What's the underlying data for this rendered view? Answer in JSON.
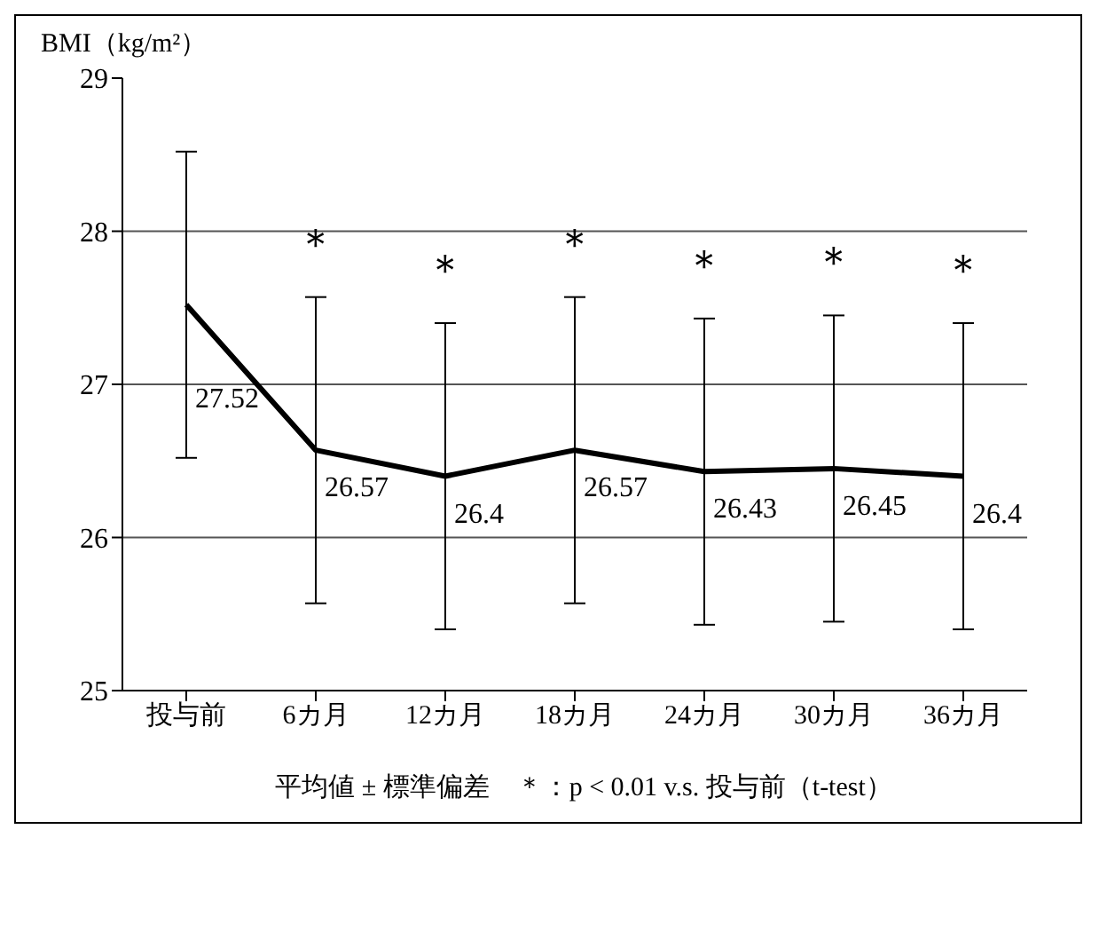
{
  "chart_data": {
    "type": "line",
    "ylabel": "BMI（kg/m²）",
    "categories": [
      "投与前",
      "6カ月",
      "12カ月",
      "18カ月",
      "24カ月",
      "30カ月",
      "36カ月"
    ],
    "series": [
      {
        "color": "#000000",
        "values": [
          27.52,
          26.57,
          26.4,
          26.57,
          26.43,
          26.45,
          26.4
        ],
        "errors": [
          1,
          1,
          1,
          1,
          1,
          1,
          1
        ]
      }
    ],
    "ylim": [
      25,
      29
    ],
    "yticks": [
      25,
      26,
      27,
      28,
      29
    ],
    "grid": "y",
    "marker": "none",
    "line_style": "solid",
    "data_labels": true,
    "legend": false,
    "annotations": [
      "＊",
      "＊",
      "＊",
      "＊",
      "＊",
      "＊",
      "平均値 ± 標準偏差　＊：p < 0.01 v.s. 投与前（t-test）"
    ]
  }
}
